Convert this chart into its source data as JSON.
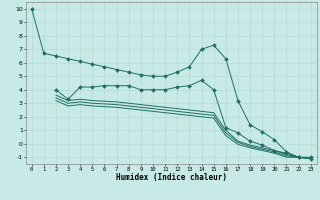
{
  "xlabel": "Humidex (Indice chaleur)",
  "xlim": [
    -0.5,
    23.5
  ],
  "ylim": [
    -1.5,
    10.5
  ],
  "yticks": [
    -1,
    0,
    1,
    2,
    3,
    4,
    5,
    6,
    7,
    8,
    9,
    10
  ],
  "xticks": [
    0,
    1,
    2,
    3,
    4,
    5,
    6,
    7,
    8,
    9,
    10,
    11,
    12,
    13,
    14,
    15,
    16,
    17,
    18,
    19,
    20,
    21,
    22,
    23
  ],
  "bg_color": "#c8eae6",
  "line_color": "#1e6e66",
  "grid_color": "#b0d8d4",
  "lines": [
    {
      "x": [
        0,
        1,
        2,
        3,
        4,
        5,
        6,
        7,
        8,
        9,
        10,
        11,
        12,
        13,
        14,
        15,
        16,
        17,
        18,
        19,
        20,
        21,
        22,
        23
      ],
      "y": [
        10,
        6.7,
        6.5,
        6.3,
        6.1,
        5.9,
        5.7,
        5.5,
        5.3,
        5.1,
        5.0,
        5.0,
        5.3,
        5.7,
        7.0,
        7.3,
        6.3,
        3.2,
        1.4,
        0.9,
        0.3,
        -0.6,
        -1.0,
        -1.0
      ],
      "marker": true
    },
    {
      "x": [
        2,
        3,
        4,
        5,
        6,
        7,
        8,
        9,
        10,
        11,
        12,
        13,
        14,
        15,
        16,
        17,
        18,
        19,
        20,
        21,
        22,
        23
      ],
      "y": [
        4.0,
        3.3,
        4.2,
        4.2,
        4.3,
        4.3,
        4.3,
        4.0,
        4.0,
        4.0,
        4.2,
        4.3,
        4.7,
        4.0,
        1.2,
        0.8,
        0.2,
        -0.1,
        -0.5,
        -0.7,
        -1.0,
        -1.1
      ],
      "marker": true
    },
    {
      "x": [
        2,
        3,
        4,
        5,
        6,
        7,
        8,
        9,
        10,
        11,
        12,
        13,
        14,
        15,
        16,
        17,
        18,
        19,
        20,
        21,
        22,
        23
      ],
      "y": [
        3.6,
        3.2,
        3.3,
        3.2,
        3.15,
        3.1,
        3.0,
        2.9,
        2.8,
        2.7,
        2.6,
        2.5,
        2.4,
        2.3,
        1.0,
        0.2,
        -0.1,
        -0.3,
        -0.5,
        -0.8,
        -1.0,
        -1.1
      ],
      "marker": false
    },
    {
      "x": [
        2,
        3,
        4,
        5,
        6,
        7,
        8,
        9,
        10,
        11,
        12,
        13,
        14,
        15,
        16,
        17,
        18,
        19,
        20,
        21,
        22,
        23
      ],
      "y": [
        3.4,
        3.0,
        3.1,
        3.0,
        2.95,
        2.9,
        2.8,
        2.7,
        2.6,
        2.5,
        2.4,
        2.3,
        2.2,
        2.1,
        0.8,
        0.1,
        -0.2,
        -0.4,
        -0.6,
        -0.9,
        -1.0,
        -1.1
      ],
      "marker": false
    },
    {
      "x": [
        2,
        3,
        4,
        5,
        6,
        7,
        8,
        9,
        10,
        11,
        12,
        13,
        14,
        15,
        16,
        17,
        18,
        19,
        20,
        21,
        22,
        23
      ],
      "y": [
        3.2,
        2.8,
        2.9,
        2.8,
        2.75,
        2.7,
        2.6,
        2.5,
        2.4,
        2.3,
        2.2,
        2.1,
        2.0,
        1.9,
        0.6,
        -0.05,
        -0.3,
        -0.5,
        -0.7,
        -1.0,
        -1.0,
        -1.1
      ],
      "marker": false
    }
  ]
}
